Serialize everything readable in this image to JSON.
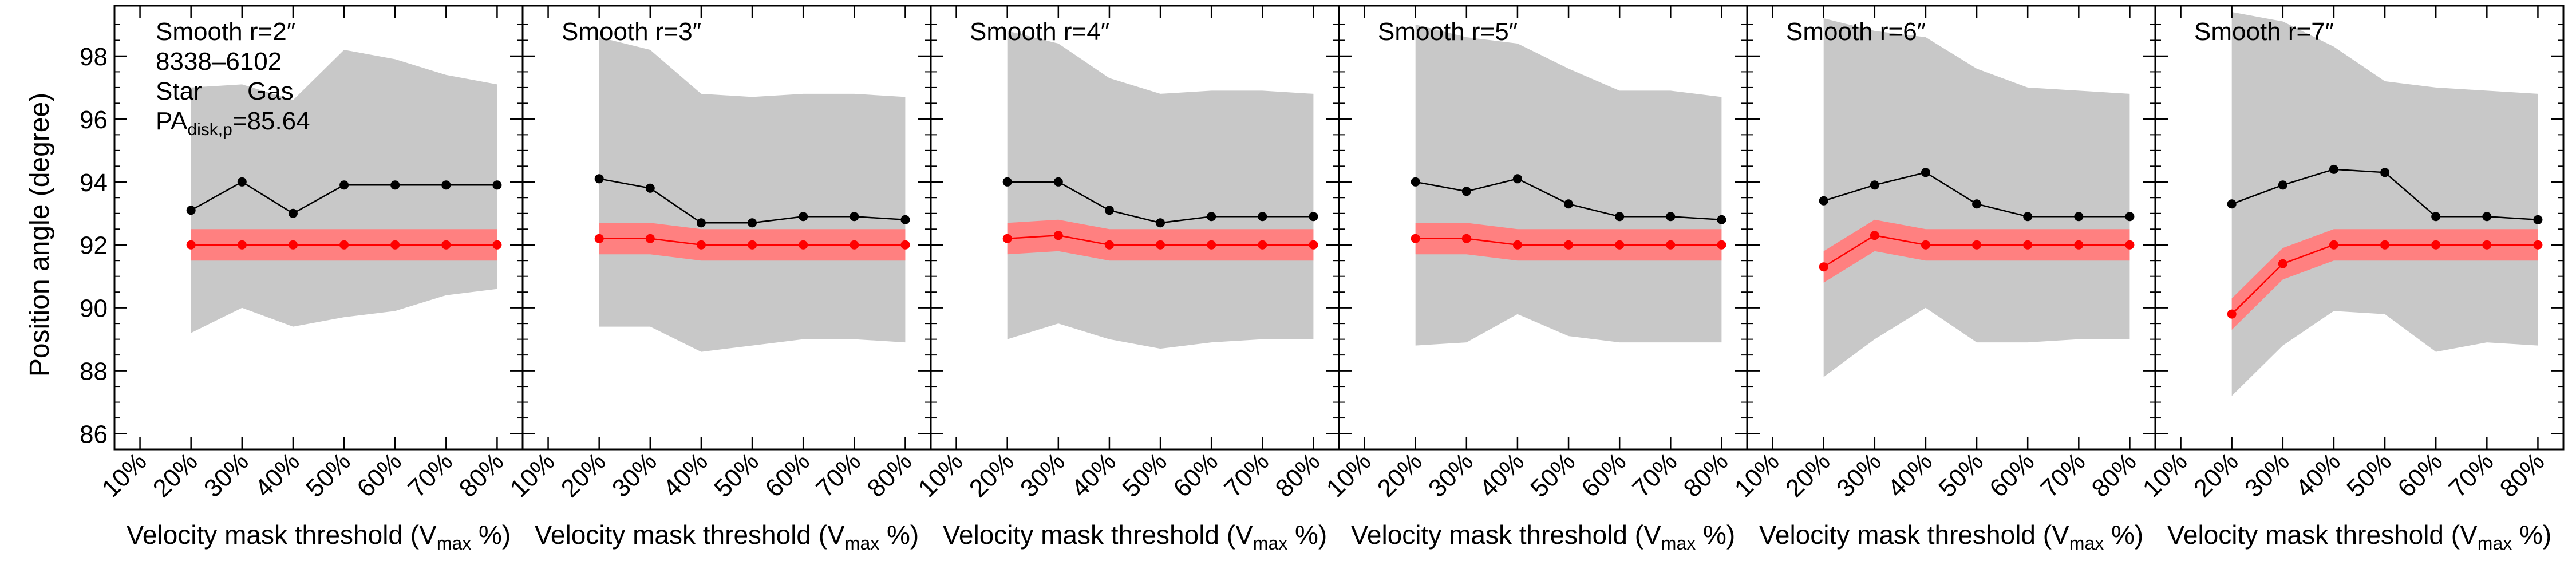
{
  "figure": {
    "ylabel": "Position angle (degree)",
    "xlabel_prefix": "Velocity mask threshold (V",
    "xlabel_sub": "max",
    "xlabel_suffix": " %)",
    "annotations": {
      "object_id": "8338–6102",
      "star_label": "Star",
      "gas_label": "Gas",
      "pa_prefix": "PA",
      "pa_sub": "disk,p",
      "pa_value": "=85.64"
    },
    "colors": {
      "star": "#000000",
      "gas": "#ff0000",
      "gas_band": "#ff8080",
      "star_band": "#c8c8c8"
    }
  },
  "chart_data": [
    {
      "type": "line",
      "title": "Smooth r=2″",
      "x": [
        20,
        30,
        40,
        50,
        60,
        70,
        80
      ],
      "xticks": [
        "10%",
        "20%",
        "30%",
        "40%",
        "50%",
        "60%",
        "70%",
        "80%"
      ],
      "xlim": [
        5,
        85
      ],
      "ylim": [
        85.5,
        99.6
      ],
      "yticks": [
        86,
        88,
        90,
        92,
        94,
        96,
        98
      ],
      "series": [
        {
          "name": "Star",
          "values": [
            93.1,
            94.0,
            93.0,
            93.9,
            93.9,
            93.9,
            93.9
          ],
          "band_lower": [
            89.2,
            90.0,
            89.4,
            89.7,
            89.9,
            90.4,
            90.6
          ],
          "band_upper": [
            97.0,
            97.1,
            96.6,
            98.2,
            97.9,
            97.4,
            97.1
          ]
        },
        {
          "name": "Gas",
          "values": [
            92.0,
            92.0,
            92.0,
            92.0,
            92.0,
            92.0,
            92.0
          ],
          "band_lower": [
            91.5,
            91.5,
            91.5,
            91.5,
            91.5,
            91.5,
            91.5
          ],
          "band_upper": [
            92.5,
            92.5,
            92.5,
            92.5,
            92.5,
            92.5,
            92.5
          ]
        }
      ]
    },
    {
      "type": "line",
      "title": "Smooth r=3″",
      "x": [
        20,
        30,
        40,
        50,
        60,
        70,
        80
      ],
      "xticks": [
        "10%",
        "20%",
        "30%",
        "40%",
        "50%",
        "60%",
        "70%",
        "80%"
      ],
      "xlim": [
        5,
        85
      ],
      "ylim": [
        85.5,
        99.6
      ],
      "yticks": [
        86,
        88,
        90,
        92,
        94,
        96,
        98
      ],
      "series": [
        {
          "name": "Star",
          "values": [
            94.1,
            93.8,
            92.7,
            92.7,
            92.9,
            92.9,
            92.8
          ],
          "band_lower": [
            89.4,
            89.4,
            88.6,
            88.8,
            89.0,
            89.0,
            88.9
          ],
          "band_upper": [
            98.6,
            98.2,
            96.8,
            96.7,
            96.8,
            96.8,
            96.7
          ]
        },
        {
          "name": "Gas",
          "values": [
            92.2,
            92.2,
            92.0,
            92.0,
            92.0,
            92.0,
            92.0
          ],
          "band_lower": [
            91.7,
            91.7,
            91.5,
            91.5,
            91.5,
            91.5,
            91.5
          ],
          "band_upper": [
            92.7,
            92.7,
            92.5,
            92.5,
            92.5,
            92.5,
            92.5
          ]
        }
      ]
    },
    {
      "type": "line",
      "title": "Smooth r=4″",
      "x": [
        20,
        30,
        40,
        50,
        60,
        70,
        80
      ],
      "xticks": [
        "10%",
        "20%",
        "30%",
        "40%",
        "50%",
        "60%",
        "70%",
        "80%"
      ],
      "xlim": [
        5,
        85
      ],
      "ylim": [
        85.5,
        99.6
      ],
      "yticks": [
        86,
        88,
        90,
        92,
        94,
        96,
        98
      ],
      "series": [
        {
          "name": "Star",
          "values": [
            94.0,
            94.0,
            93.1,
            92.7,
            92.9,
            92.9,
            92.9
          ],
          "band_lower": [
            89.0,
            89.5,
            89.0,
            88.7,
            88.9,
            89.0,
            89.0
          ],
          "band_upper": [
            98.8,
            98.4,
            97.3,
            96.8,
            96.9,
            96.9,
            96.8
          ]
        },
        {
          "name": "Gas",
          "values": [
            92.2,
            92.3,
            92.0,
            92.0,
            92.0,
            92.0,
            92.0
          ],
          "band_lower": [
            91.7,
            91.8,
            91.5,
            91.5,
            91.5,
            91.5,
            91.5
          ],
          "band_upper": [
            92.7,
            92.8,
            92.5,
            92.5,
            92.5,
            92.5,
            92.5
          ]
        }
      ]
    },
    {
      "type": "line",
      "title": "Smooth r=5″",
      "x": [
        20,
        30,
        40,
        50,
        60,
        70,
        80
      ],
      "xticks": [
        "10%",
        "20%",
        "30%",
        "40%",
        "50%",
        "60%",
        "70%",
        "80%"
      ],
      "xlim": [
        5,
        85
      ],
      "ylim": [
        85.5,
        99.6
      ],
      "yticks": [
        86,
        88,
        90,
        92,
        94,
        96,
        98
      ],
      "series": [
        {
          "name": "Star",
          "values": [
            94.0,
            93.7,
            94.1,
            93.3,
            92.9,
            92.9,
            92.8
          ],
          "band_lower": [
            88.8,
            88.9,
            89.8,
            89.1,
            88.9,
            88.9,
            88.9
          ],
          "band_upper": [
            99.0,
            98.6,
            98.4,
            97.6,
            96.9,
            96.9,
            96.7
          ]
        },
        {
          "name": "Gas",
          "values": [
            92.2,
            92.2,
            92.0,
            92.0,
            92.0,
            92.0,
            92.0
          ],
          "band_lower": [
            91.7,
            91.7,
            91.5,
            91.5,
            91.5,
            91.5,
            91.5
          ],
          "band_upper": [
            92.7,
            92.7,
            92.5,
            92.5,
            92.5,
            92.5,
            92.5
          ]
        }
      ]
    },
    {
      "type": "line",
      "title": "Smooth r=6″",
      "x": [
        20,
        30,
        40,
        50,
        60,
        70,
        80
      ],
      "xticks": [
        "10%",
        "20%",
        "30%",
        "40%",
        "50%",
        "60%",
        "70%",
        "80%"
      ],
      "xlim": [
        5,
        85
      ],
      "ylim": [
        85.5,
        99.6
      ],
      "yticks": [
        86,
        88,
        90,
        92,
        94,
        96,
        98
      ],
      "series": [
        {
          "name": "Star",
          "values": [
            93.4,
            93.9,
            94.3,
            93.3,
            92.9,
            92.9,
            92.9
          ],
          "band_lower": [
            87.8,
            89.0,
            90.0,
            88.9,
            88.9,
            89.0,
            89.0
          ],
          "band_upper": [
            99.2,
            98.8,
            98.6,
            97.6,
            97.0,
            96.9,
            96.8
          ]
        },
        {
          "name": "Gas",
          "values": [
            91.3,
            92.3,
            92.0,
            92.0,
            92.0,
            92.0,
            92.0
          ],
          "band_lower": [
            90.8,
            91.8,
            91.5,
            91.5,
            91.5,
            91.5,
            91.5
          ],
          "band_upper": [
            91.8,
            92.8,
            92.5,
            92.5,
            92.5,
            92.5,
            92.5
          ]
        }
      ]
    },
    {
      "type": "line",
      "title": "Smooth r=7″",
      "x": [
        20,
        30,
        40,
        50,
        60,
        70,
        80
      ],
      "xticks": [
        "10%",
        "20%",
        "30%",
        "40%",
        "50%",
        "60%",
        "70%",
        "80%"
      ],
      "xlim": [
        5,
        85
      ],
      "ylim": [
        85.5,
        99.6
      ],
      "yticks": [
        86,
        88,
        90,
        92,
        94,
        96,
        98
      ],
      "series": [
        {
          "name": "Star",
          "values": [
            93.3,
            93.9,
            94.4,
            94.3,
            92.9,
            92.9,
            92.8
          ],
          "band_lower": [
            87.2,
            88.8,
            89.9,
            89.8,
            88.6,
            88.9,
            88.8
          ],
          "band_upper": [
            99.4,
            99.1,
            98.3,
            97.2,
            97.0,
            96.9,
            96.8
          ]
        },
        {
          "name": "Gas",
          "values": [
            89.8,
            91.4,
            92.0,
            92.0,
            92.0,
            92.0,
            92.0
          ],
          "band_lower": [
            89.3,
            90.9,
            91.5,
            91.5,
            91.5,
            91.5,
            91.5
          ],
          "band_upper": [
            90.3,
            91.9,
            92.5,
            92.5,
            92.5,
            92.5,
            92.5
          ]
        }
      ]
    }
  ]
}
